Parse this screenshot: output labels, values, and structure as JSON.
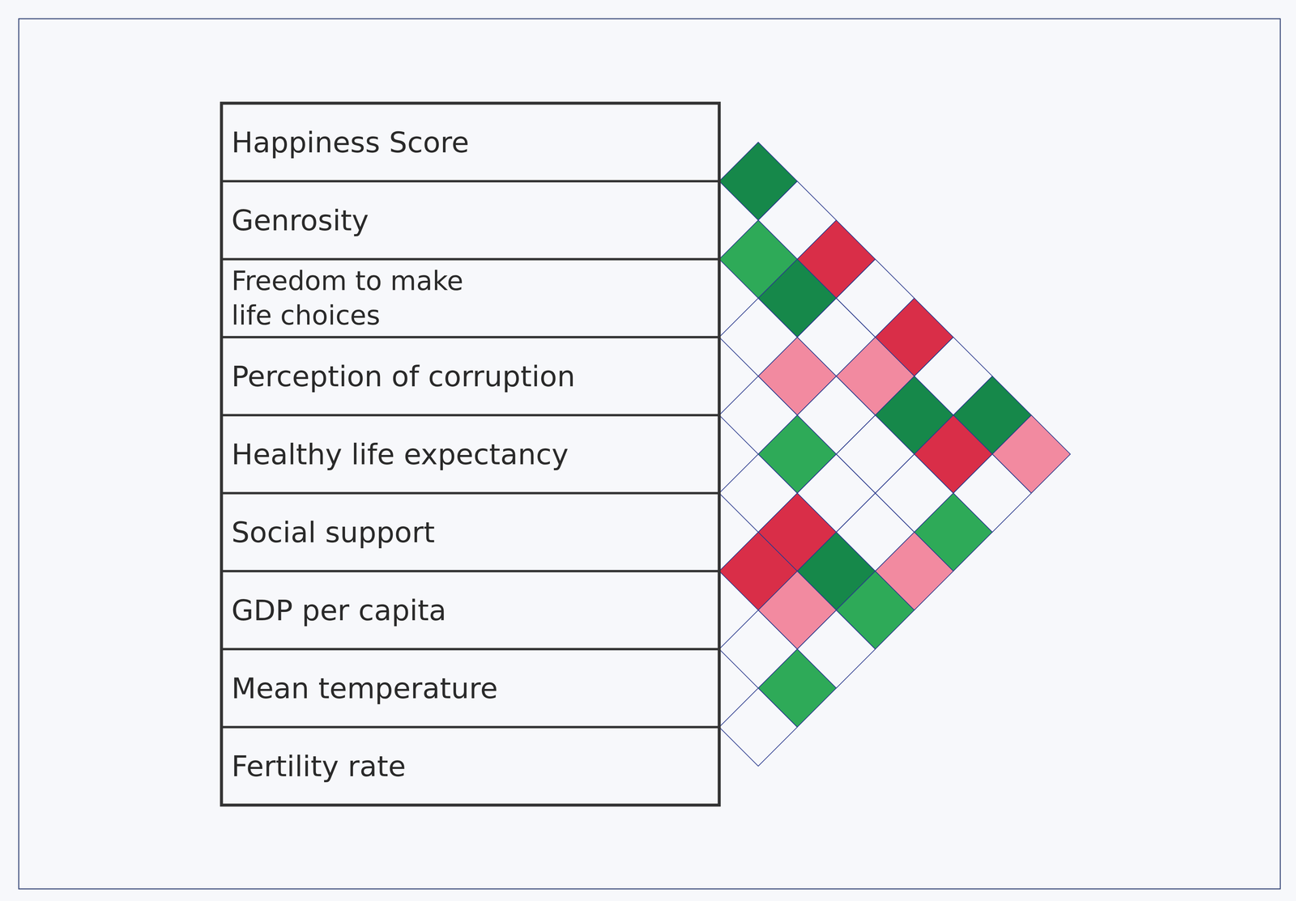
{
  "chart_data": {
    "type": "correlation_triangle",
    "labels": [
      "Happiness Score",
      "Genrosity",
      "Freedom to make\nlife choices",
      "Perception of corruption",
      "Healthy life expectancy",
      "Social support",
      "GDP per capita",
      "Mean temperature",
      "Fertility rate"
    ],
    "cell_colors": [
      [
        "#16884a",
        null,
        "#d92e48",
        null,
        "#d92e48",
        null,
        "#16884a",
        "#f28aa0"
      ],
      [
        "#2eaa58",
        "#16884a",
        null,
        "#f28aa0",
        "#16884a",
        "#d92e48",
        null
      ],
      [
        null,
        "#f28aa0",
        null,
        null,
        null,
        "#2eaa58"
      ],
      [
        null,
        "#2eaa58",
        null,
        null,
        "#f28aa0"
      ],
      [
        null,
        "#d92e48",
        "#16884a",
        "#2eaa58"
      ],
      [
        "#d92e48",
        "#f28aa0",
        null
      ],
      [
        null,
        "#2eaa58"
      ],
      [
        null
      ]
    ]
  }
}
